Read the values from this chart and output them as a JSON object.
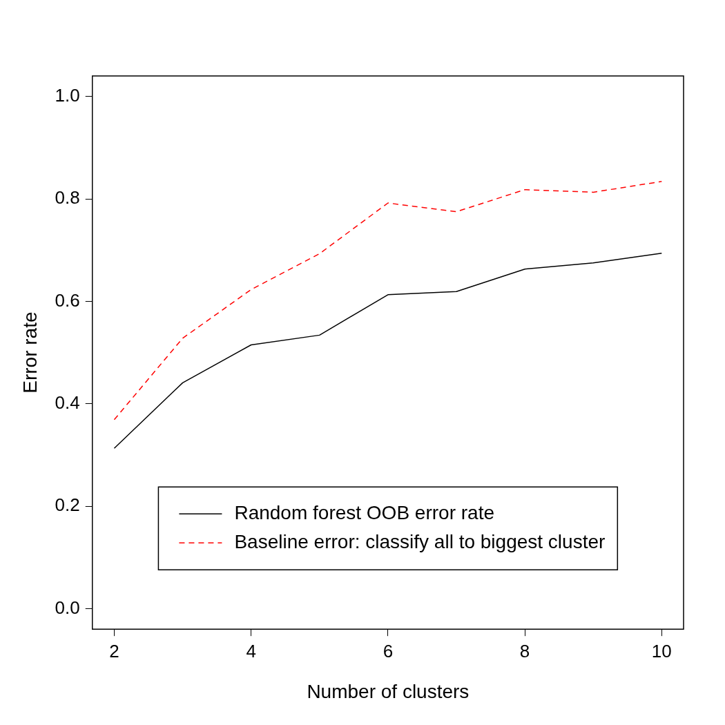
{
  "chart_data": {
    "type": "line",
    "xlabel": "Number of clusters",
    "ylabel": "Error rate",
    "x": [
      2,
      3,
      4,
      5,
      6,
      7,
      8,
      9,
      10
    ],
    "series": [
      {
        "name": "Random forest OOB error rate",
        "color": "#000000",
        "line_style": "solid",
        "values": [
          0.313,
          0.441,
          0.515,
          0.534,
          0.613,
          0.619,
          0.663,
          0.675,
          0.694
        ]
      },
      {
        "name": "Baseline error: classify all to biggest cluster",
        "color": "#ff0000",
        "line_style": "dashed",
        "values": [
          0.369,
          0.528,
          0.623,
          0.693,
          0.792,
          0.775,
          0.818,
          0.813,
          0.834
        ]
      }
    ],
    "xlim": [
      1.68,
      10.32
    ],
    "xticks": [
      2,
      4,
      6,
      8,
      10
    ],
    "ylim": [
      -0.04,
      1.04
    ],
    "yticks": [
      {
        "value": 0,
        "label": "0.0"
      },
      {
        "value": 0.2,
        "label": "0.2"
      },
      {
        "value": 0.4,
        "label": "0.4"
      },
      {
        "value": 0.6,
        "label": "0.6"
      },
      {
        "value": 0.8,
        "label": "0.8"
      },
      {
        "value": 1,
        "label": "1.0"
      }
    ],
    "grid": false,
    "legend": "bottom",
    "marker": "none"
  }
}
